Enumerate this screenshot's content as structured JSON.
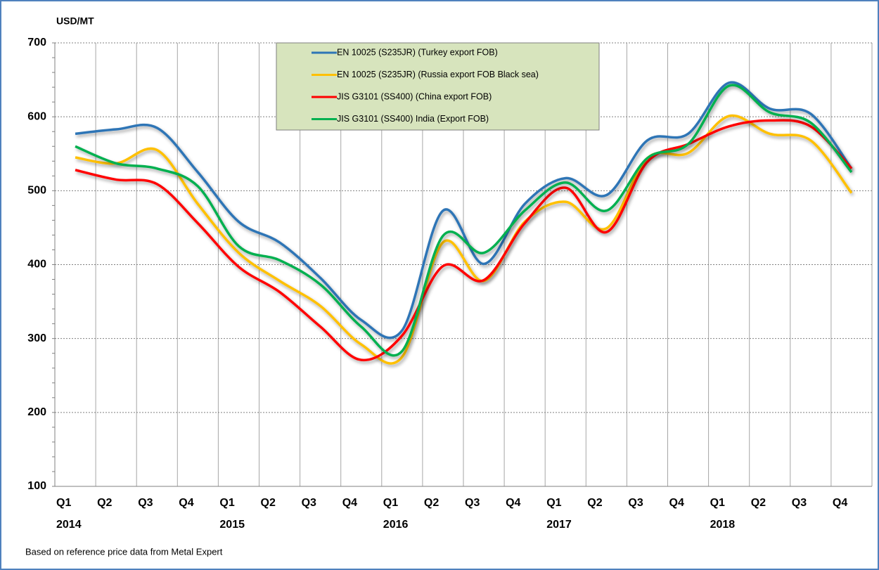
{
  "chart_data": {
    "type": "line",
    "y_unit_label": "USD/MT",
    "categories": [
      "Q1",
      "Q2",
      "Q3",
      "Q4",
      "Q1",
      "Q2",
      "Q3",
      "Q4",
      "Q1",
      "Q2",
      "Q3",
      "Q4",
      "Q1",
      "Q2",
      "Q3",
      "Q4",
      "Q1",
      "Q2",
      "Q3",
      "Q4"
    ],
    "year_labels": [
      "2014",
      "2015",
      "2016",
      "2017",
      "2018"
    ],
    "series": [
      {
        "name": "EN 10025 (S235JR) (Turkey export FOB)",
        "color": "#2e75b6",
        "values": [
          577,
          583,
          585,
          525,
          458,
          430,
          382,
          325,
          311,
          473,
          401,
          482,
          517,
          494,
          568,
          577,
          646,
          611,
          604,
          530
        ]
      },
      {
        "name": "EN 10025 (S235JR) (Russia export FOB Black sea)",
        "color": "#ffc000",
        "values": [
          545,
          537,
          555,
          482,
          416,
          378,
          344,
          292,
          275,
          430,
          378,
          458,
          485,
          449,
          544,
          551,
          601,
          577,
          568,
          497
        ]
      },
      {
        "name": "JIS G3101 (SS400) (China export FOB)",
        "color": "#ff0000",
        "values": [
          528,
          515,
          509,
          456,
          397,
          363,
          316,
          271,
          304,
          398,
          379,
          456,
          504,
          444,
          539,
          563,
          587,
          595,
          587,
          530
        ]
      },
      {
        "name": "JIS G3101 (SS400) India (Export FOB)",
        "color": "#00b050",
        "values": [
          560,
          537,
          530,
          506,
          425,
          406,
          373,
          316,
          283,
          439,
          416,
          473,
          511,
          473,
          544,
          563,
          642,
          606,
          592,
          525
        ]
      }
    ],
    "ylim": [
      100,
      700
    ],
    "yticks": [
      100,
      200,
      300,
      400,
      500,
      600,
      700
    ],
    "grid": true,
    "legend_position": "top",
    "footnote": "Based on reference price data from Metal Expert"
  }
}
